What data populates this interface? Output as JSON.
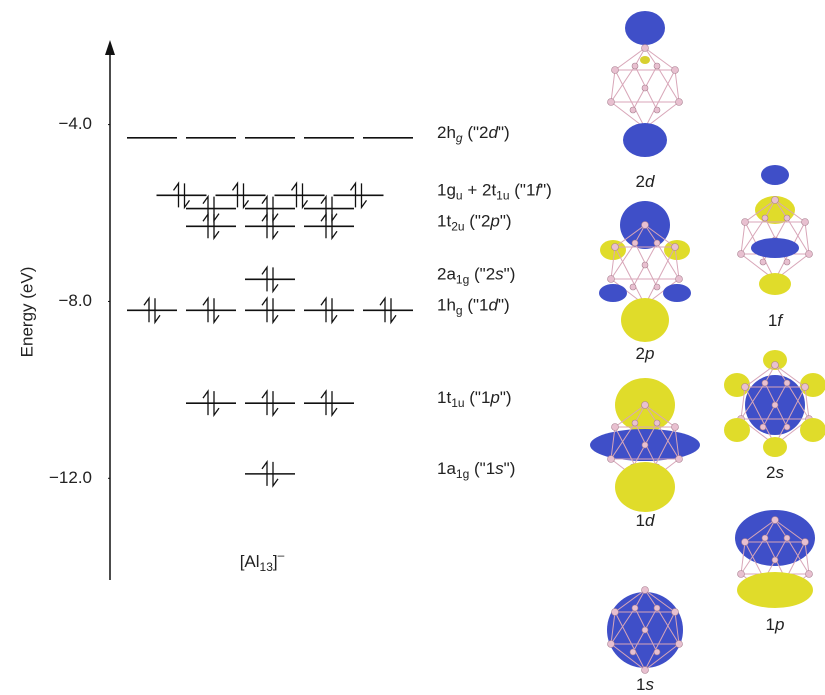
{
  "chart_data": {
    "type": "levels",
    "y_label": "Energy (eV)",
    "ylim": [
      -14.3,
      -2.2
    ],
    "yticks": [
      {
        "value": -4,
        "label": "−4.0"
      },
      {
        "value": -8,
        "label": "−8.0"
      },
      {
        "value": -12,
        "label": "−12.0"
      }
    ],
    "cluster_label": [
      {
        "t": "[Al"
      },
      {
        "t": "13",
        "sub": true
      },
      {
        "t": "]"
      },
      {
        "t": "–",
        "sup": true
      }
    ],
    "levels": [
      {
        "energy": -4.3,
        "degeneracy": 5,
        "filled": false,
        "label": [
          {
            "t": "2h"
          },
          {
            "t": "g",
            "sub": true,
            "italic": true
          },
          {
            "t": " (\"2"
          },
          {
            "t": "d",
            "italic": true
          },
          {
            "t": "\")"
          }
        ]
      },
      {
        "energy": -5.6,
        "degeneracy": 4,
        "filled": true,
        "label": [
          {
            "t": "1g"
          },
          {
            "t": "u",
            "sub": true
          },
          {
            "t": " + 2t"
          },
          {
            "t": "1u",
            "sub": true
          },
          {
            "t": " (\"1"
          },
          {
            "t": "f",
            "italic": true
          },
          {
            "t": "\")"
          }
        ]
      },
      {
        "energy": -5.9,
        "degeneracy": 3,
        "filled": true
      },
      {
        "energy": -6.3,
        "degeneracy": 3,
        "filled": true,
        "label": [
          {
            "t": "1t"
          },
          {
            "t": "2u",
            "sub": true
          },
          {
            "t": " (\"2"
          },
          {
            "t": "p",
            "italic": true
          },
          {
            "t": "\")"
          }
        ]
      },
      {
        "energy": -7.5,
        "degeneracy": 1,
        "filled": true,
        "label": [
          {
            "t": "2a"
          },
          {
            "t": "1g",
            "sub": true
          },
          {
            "t": " (\"2"
          },
          {
            "t": "s",
            "italic": true
          },
          {
            "t": "\")"
          }
        ]
      },
      {
        "energy": -8.2,
        "degeneracy": 5,
        "filled": true,
        "label": [
          {
            "t": "1h"
          },
          {
            "t": "g",
            "sub": true
          },
          {
            "t": " (\"1"
          },
          {
            "t": "d",
            "italic": true
          },
          {
            "t": "\")"
          }
        ]
      },
      {
        "energy": -10.3,
        "degeneracy": 3,
        "filled": true,
        "label": [
          {
            "t": "1t"
          },
          {
            "t": "1u",
            "sub": true
          },
          {
            "t": " (\"1"
          },
          {
            "t": "p",
            "italic": true
          },
          {
            "t": "\")"
          }
        ]
      },
      {
        "energy": -11.9,
        "degeneracy": 1,
        "filled": true,
        "label": [
          {
            "t": "1a"
          },
          {
            "t": "1g",
            "sub": true
          },
          {
            "t": " (\"1"
          },
          {
            "t": "s",
            "italic": true
          },
          {
            "t": "\")"
          }
        ]
      }
    ]
  },
  "orbitals": [
    {
      "n": "2",
      "l": "d"
    },
    {
      "n": "1",
      "l": "f"
    },
    {
      "n": "2",
      "l": "p"
    },
    {
      "n": "2",
      "l": "s"
    },
    {
      "n": "1",
      "l": "d"
    },
    {
      "n": "1",
      "l": "p"
    },
    {
      "n": "1",
      "l": "s"
    }
  ]
}
